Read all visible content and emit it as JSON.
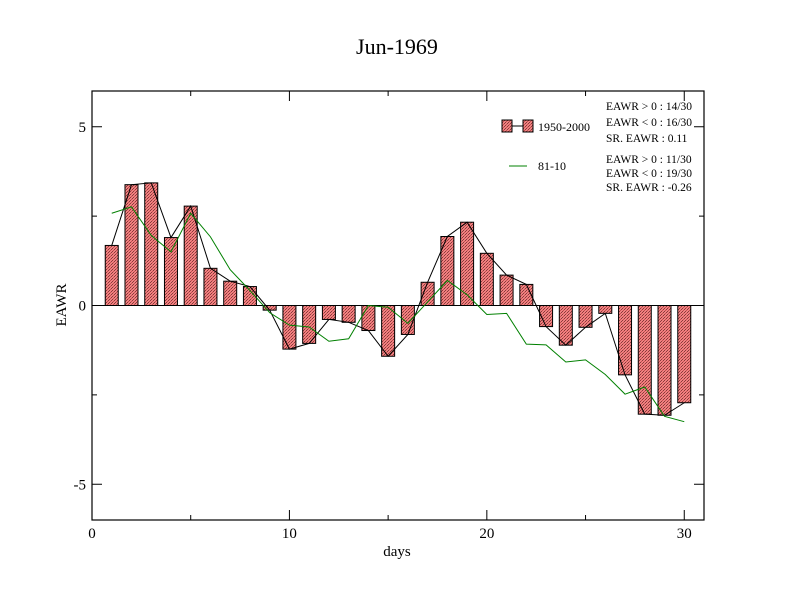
{
  "chart_data": {
    "type": "bar",
    "title": "Jun-1969",
    "xlabel": "days",
    "ylabel": "EAWR",
    "xlim": [
      0,
      31
    ],
    "ylim": [
      -6,
      6
    ],
    "x_ticks": [
      0,
      10,
      20,
      30
    ],
    "y_ticks": [
      -5,
      0,
      5
    ],
    "x": [
      1,
      2,
      3,
      4,
      5,
      6,
      7,
      8,
      9,
      10,
      11,
      12,
      13,
      14,
      15,
      16,
      17,
      18,
      19,
      20,
      21,
      22,
      23,
      24,
      25,
      26,
      27,
      28,
      29,
      30
    ],
    "series": [
      {
        "name": "1950-2000",
        "kind": "bar",
        "color": "#f08080",
        "values": [
          1.68,
          3.38,
          3.43,
          1.9,
          2.78,
          1.04,
          0.68,
          0.53,
          -0.13,
          -1.22,
          -1.06,
          -0.39,
          -0.47,
          -0.7,
          -1.42,
          -0.81,
          0.65,
          1.93,
          2.33,
          1.46,
          0.85,
          0.59,
          -0.59,
          -1.11,
          -0.61,
          -0.22,
          -1.94,
          -3.04,
          -3.07,
          -2.72
        ]
      },
      {
        "name": "81-10",
        "kind": "line",
        "color": "#008000",
        "values": [
          2.58,
          2.76,
          1.96,
          1.5,
          2.58,
          1.92,
          1.0,
          0.42,
          -0.2,
          -0.55,
          -0.6,
          -1.0,
          -0.93,
          0.0,
          -0.05,
          -0.5,
          0.1,
          0.7,
          0.3,
          -0.25,
          -0.22,
          -1.08,
          -1.1,
          -1.58,
          -1.52,
          -1.93,
          -2.48,
          -2.28,
          -3.1,
          -3.25
        ]
      }
    ],
    "legend_position": "top-right",
    "stats": [
      "EAWR > 0 : 14/30",
      "EAWR < 0 : 16/30",
      "SR. EAWR :  0.11",
      "EAWR > 0 : 11/30",
      "EAWR < 0 : 19/30",
      "SR. EAWR : -0.26"
    ],
    "grid": false
  }
}
